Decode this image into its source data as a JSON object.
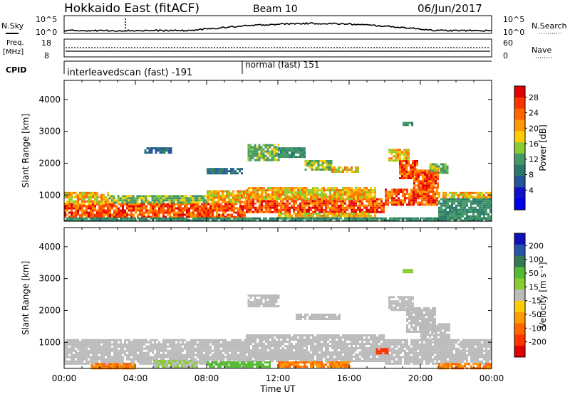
{
  "header": {
    "station": "Hokkaido East (fitACF)",
    "beam": "Beam 10",
    "date": "06/Jun/2017"
  },
  "aux": {
    "nsky_label": "N.Sky",
    "nsky_ticks": [
      "10^5",
      "10^0"
    ],
    "nsearch_label": "N.Search",
    "nsearch_ticks": [
      "10^5",
      "10^0"
    ],
    "freq_label_1": "Freq.",
    "freq_label_2": "[MHz]",
    "freq_ticks": [
      "18",
      "8"
    ],
    "nave_ticks": [
      "60",
      "0"
    ],
    "nave_label": "Nave",
    "cpid_label": "CPID",
    "cpid_segments": [
      {
        "label": "interleavedscan (fast) -191",
        "start_hour": 0
      },
      {
        "label": "normal (fast) 151",
        "start_hour": 10
      }
    ]
  },
  "chart_data": [
    {
      "type": "heatmap",
      "title": "Power",
      "xlabel": "",
      "ylabel": "Slant Range [km]",
      "xlim": [
        0,
        24
      ],
      "ylim": [
        180,
        4600
      ],
      "y_ticks": [
        1000,
        2000,
        3000,
        4000
      ],
      "colorbar": {
        "label": "Power [dB]",
        "ticks": [
          "28",
          "24",
          "20",
          "16",
          "12",
          "8",
          "4"
        ],
        "colors": [
          "#e00000",
          "#ff3300",
          "#ff6600",
          "#ff9900",
          "#ffcc00",
          "#88cc33",
          "#449966",
          "#2a7a6a",
          "#225599",
          "#1111cc",
          "#0000ee"
        ]
      },
      "regions": [
        {
          "x0": 0.0,
          "x1": 10.2,
          "y0": 300,
          "y1": 750,
          "level": 28
        },
        {
          "x0": 0.0,
          "x1": 2.5,
          "y0": 750,
          "y1": 1100,
          "level": 24
        },
        {
          "x0": 2.5,
          "x1": 8.0,
          "y0": 750,
          "y1": 1000,
          "level": 20
        },
        {
          "x0": 8.0,
          "x1": 10.2,
          "y0": 750,
          "y1": 1150,
          "level": 24
        },
        {
          "x0": 10.2,
          "x1": 18.0,
          "y0": 450,
          "y1": 900,
          "level": 28
        },
        {
          "x0": 10.2,
          "x1": 17.5,
          "y0": 900,
          "y1": 1250,
          "level": 24
        },
        {
          "x0": 12.0,
          "x1": 17.5,
          "y0": 300,
          "y1": 450,
          "level": 24
        },
        {
          "x0": 18.0,
          "x1": 21.0,
          "y0": 700,
          "y1": 1200,
          "level": 28
        },
        {
          "x0": 21.0,
          "x1": 24.0,
          "y0": 250,
          "y1": 900,
          "level": 16
        },
        {
          "x0": 21.0,
          "x1": 24.0,
          "y0": 900,
          "y1": 1100,
          "level": 24
        },
        {
          "x0": 0.0,
          "x1": 24.0,
          "y0": 200,
          "y1": 300,
          "level": 16
        },
        {
          "x0": 10.3,
          "x1": 12.0,
          "y0": 2100,
          "y1": 2600,
          "level": 20
        },
        {
          "x0": 12.0,
          "x1": 13.5,
          "y0": 2200,
          "y1": 2500,
          "level": 16
        },
        {
          "x0": 13.5,
          "x1": 15.0,
          "y0": 1800,
          "y1": 2100,
          "level": 20
        },
        {
          "x0": 15.0,
          "x1": 16.5,
          "y0": 1700,
          "y1": 1900,
          "level": 24
        },
        {
          "x0": 18.2,
          "x1": 19.4,
          "y0": 2100,
          "y1": 2450,
          "level": 24
        },
        {
          "x0": 18.8,
          "x1": 19.8,
          "y0": 1500,
          "y1": 2100,
          "level": 28
        },
        {
          "x0": 19.6,
          "x1": 21.0,
          "y0": 1200,
          "y1": 1800,
          "level": 28
        },
        {
          "x0": 20.5,
          "x1": 21.5,
          "y0": 1700,
          "y1": 2000,
          "level": 20
        },
        {
          "x0": 4.5,
          "x1": 6.0,
          "y0": 2350,
          "y1": 2500,
          "level": 12
        },
        {
          "x0": 8.0,
          "x1": 10.0,
          "y0": 1650,
          "y1": 1850,
          "level": 12
        },
        {
          "x0": 19.0,
          "x1": 19.6,
          "y0": 3200,
          "y1": 3300,
          "level": 16
        }
      ]
    },
    {
      "type": "heatmap",
      "title": "Velocity",
      "xlabel": "Time UT",
      "ylabel": "Slant Range [km]",
      "xlim": [
        0,
        24
      ],
      "ylim": [
        180,
        4600
      ],
      "x_ticks": [
        "00:00",
        "04:00",
        "08:00",
        "12:00",
        "16:00",
        "20:00",
        "00:00"
      ],
      "y_ticks": [
        1000,
        2000,
        3000,
        4000
      ],
      "colorbar": {
        "label": "Velocity [m s⁻¹]",
        "ticks": [
          "200",
          "100",
          "50",
          "15",
          "-15",
          "-50",
          "-100",
          "-200"
        ],
        "colors": [
          "#1111bb",
          "#2255aa",
          "#337755",
          "#55bb33",
          "#88cc33",
          "#bbbbbb",
          "#ffcc00",
          "#ff9900",
          "#ff6600",
          "#ff3300",
          "#e00000"
        ]
      },
      "regions": [
        {
          "x0": 0.0,
          "x1": 10.2,
          "y0": 300,
          "y1": 1100,
          "level": 0
        },
        {
          "x0": 10.2,
          "x1": 18.0,
          "y0": 400,
          "y1": 1250,
          "level": 0
        },
        {
          "x0": 18.0,
          "x1": 24.0,
          "y0": 300,
          "y1": 1100,
          "level": 0
        },
        {
          "x0": 5.0,
          "x1": 7.5,
          "y0": 200,
          "y1": 450,
          "level": 30
        },
        {
          "x0": 8.0,
          "x1": 11.5,
          "y0": 200,
          "y1": 400,
          "level": 60
        },
        {
          "x0": 12.0,
          "x1": 16.0,
          "y0": 250,
          "y1": 400,
          "level": -30
        },
        {
          "x0": 1.5,
          "x1": 4.0,
          "y0": 200,
          "y1": 350,
          "level": -30
        },
        {
          "x0": 17.5,
          "x1": 18.2,
          "y0": 620,
          "y1": 820,
          "level": -80
        },
        {
          "x0": 21.0,
          "x1": 24.0,
          "y0": 200,
          "y1": 350,
          "level": -30
        },
        {
          "x0": 18.2,
          "x1": 19.6,
          "y0": 2000,
          "y1": 2450,
          "level": 0
        },
        {
          "x0": 19.2,
          "x1": 20.8,
          "y0": 1300,
          "y1": 2100,
          "level": 0
        },
        {
          "x0": 20.0,
          "x1": 21.6,
          "y0": 1100,
          "y1": 1600,
          "level": 0
        },
        {
          "x0": 10.3,
          "x1": 12.0,
          "y0": 2100,
          "y1": 2500,
          "level": 0
        },
        {
          "x0": 13.0,
          "x1": 15.5,
          "y0": 1700,
          "y1": 1900,
          "level": 0
        },
        {
          "x0": 19.0,
          "x1": 19.6,
          "y0": 3200,
          "y1": 3300,
          "level": 40
        }
      ]
    }
  ]
}
